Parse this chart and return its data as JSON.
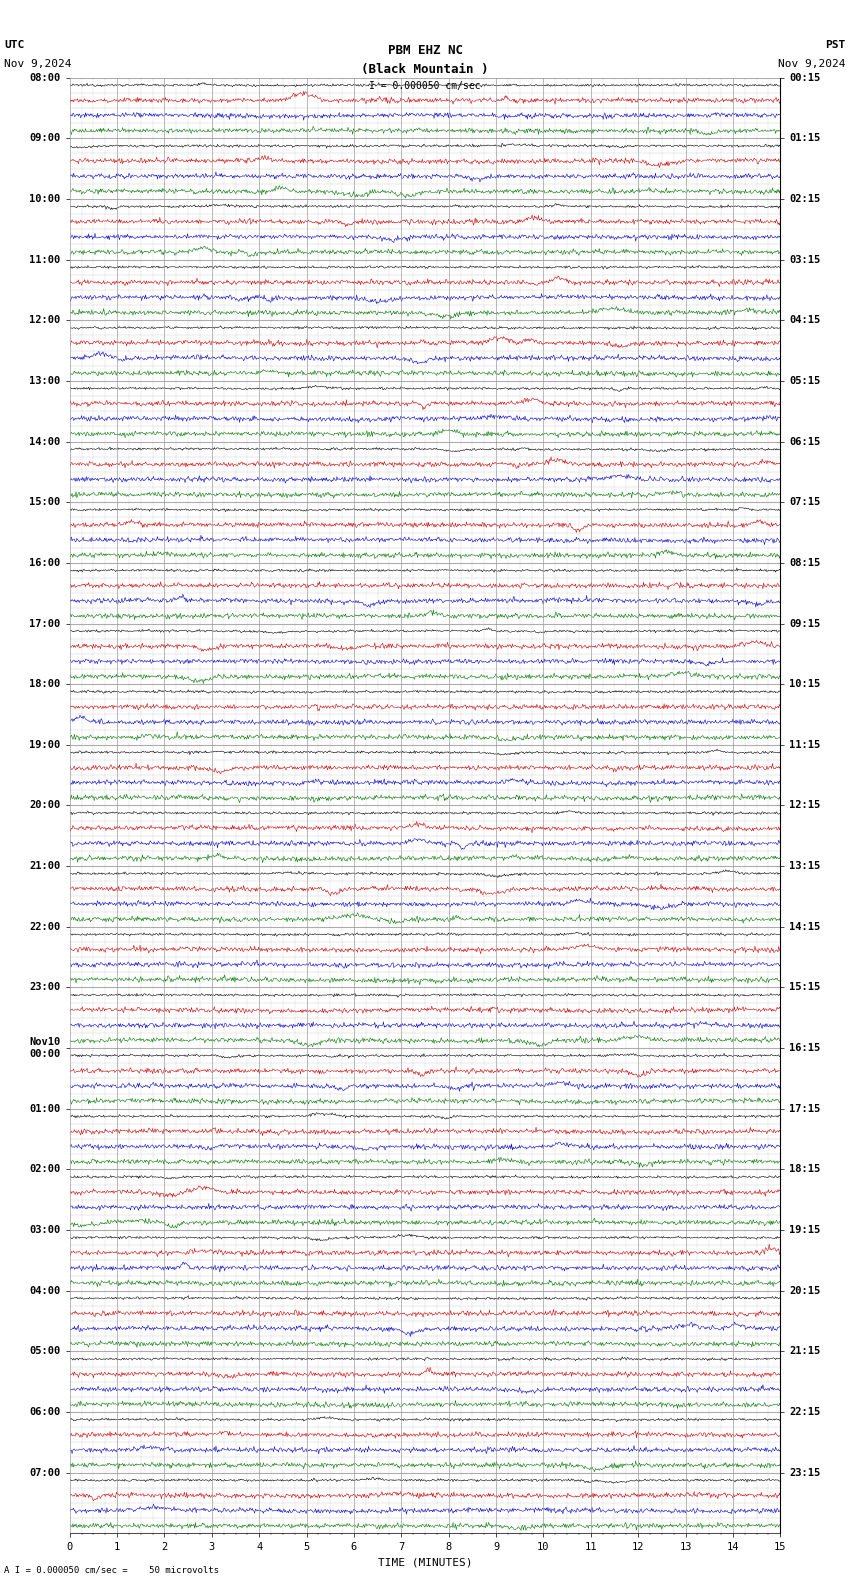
{
  "title_line1": "PBM EHZ NC",
  "title_line2": "(Black Mountain )",
  "scale_label": "I = 0.000050 cm/sec",
  "footer_label": "A I = 0.000050 cm/sec =    50 microvolts",
  "utc_label": "UTC",
  "utc_date": "Nov 9,2024",
  "pst_label": "PST",
  "pst_date": "Nov 9,2024",
  "xlabel": "TIME (MINUTES)",
  "xlim": [
    0,
    15
  ],
  "bg_color": "#ffffff",
  "grid_color": "#999999",
  "trace_color_black": "#000000",
  "trace_color_blue": "#0000cc",
  "trace_color_red": "#cc0000",
  "trace_color_green": "#007700",
  "label_fontsize": 8,
  "title_fontsize": 9,
  "tick_fontsize": 7.5,
  "utc_times": [
    "08:00",
    "09:00",
    "10:00",
    "11:00",
    "12:00",
    "13:00",
    "14:00",
    "15:00",
    "16:00",
    "17:00",
    "18:00",
    "19:00",
    "20:00",
    "21:00",
    "22:00",
    "23:00",
    "Nov10\n00:00",
    "01:00",
    "02:00",
    "03:00",
    "04:00",
    "05:00",
    "06:00",
    "07:00"
  ],
  "pst_times": [
    "00:15",
    "01:15",
    "02:15",
    "03:15",
    "04:15",
    "05:15",
    "06:15",
    "07:15",
    "08:15",
    "09:15",
    "10:15",
    "11:15",
    "12:15",
    "13:15",
    "14:15",
    "15:15",
    "16:15",
    "17:15",
    "18:15",
    "19:15",
    "20:15",
    "21:15",
    "22:15",
    "23:15"
  ],
  "num_hours": 24,
  "sub_rows": 4,
  "noise_scale": 0.08,
  "colored_noise_scale": 0.12
}
